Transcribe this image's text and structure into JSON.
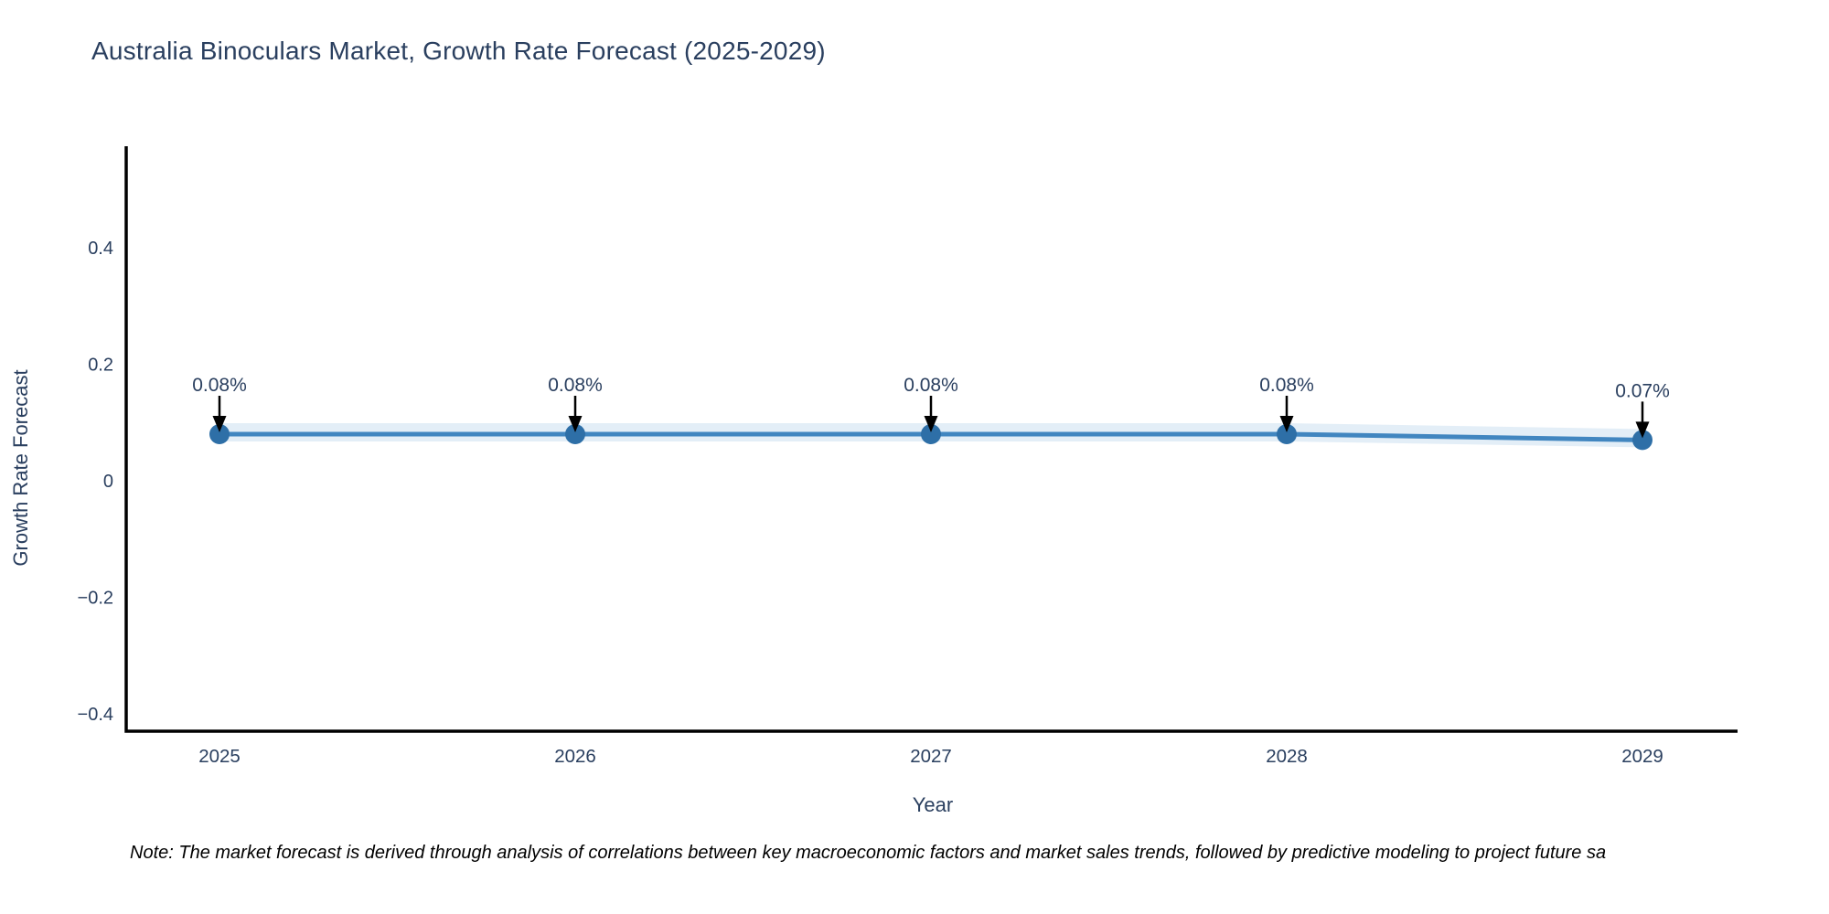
{
  "title": "Australia Binoculars Market, Growth Rate Forecast (2025-2029)",
  "note": "Note: The market forecast is derived through analysis of correlations between key macroeconomic factors and market sales trends, followed by predictive modeling to project future sa",
  "chart_data": {
    "type": "line",
    "title": "Australia Binoculars Market, Growth Rate Forecast (2025-2029)",
    "xlabel": "Year",
    "ylabel": "Growth Rate Forecast",
    "categories": [
      "2025",
      "2026",
      "2027",
      "2028",
      "2029"
    ],
    "series": [
      {
        "name": "Growth Rate Forecast",
        "values": [
          0.08,
          0.08,
          0.08,
          0.08,
          0.07
        ]
      }
    ],
    "point_labels": [
      "0.08%",
      "0.08%",
      "0.08%",
      "0.08%",
      "0.07%"
    ],
    "ytick_values": [
      0.4,
      0.2,
      0,
      -0.2,
      -0.4
    ],
    "ytick_labels": [
      "0.4",
      "0.2",
      "0",
      "−0.2",
      "−0.4"
    ],
    "ylim": [
      -0.43,
      0.575
    ],
    "grid": false,
    "legend_position": "none",
    "annotation_style": "down-arrow",
    "colors": {
      "line": "#4186c0",
      "marker": "#2e6fa7",
      "band": "#aecde8",
      "text": "#2a3f5f",
      "axis": "#000000",
      "arrow": "#000000",
      "note_text": "#000000"
    }
  }
}
